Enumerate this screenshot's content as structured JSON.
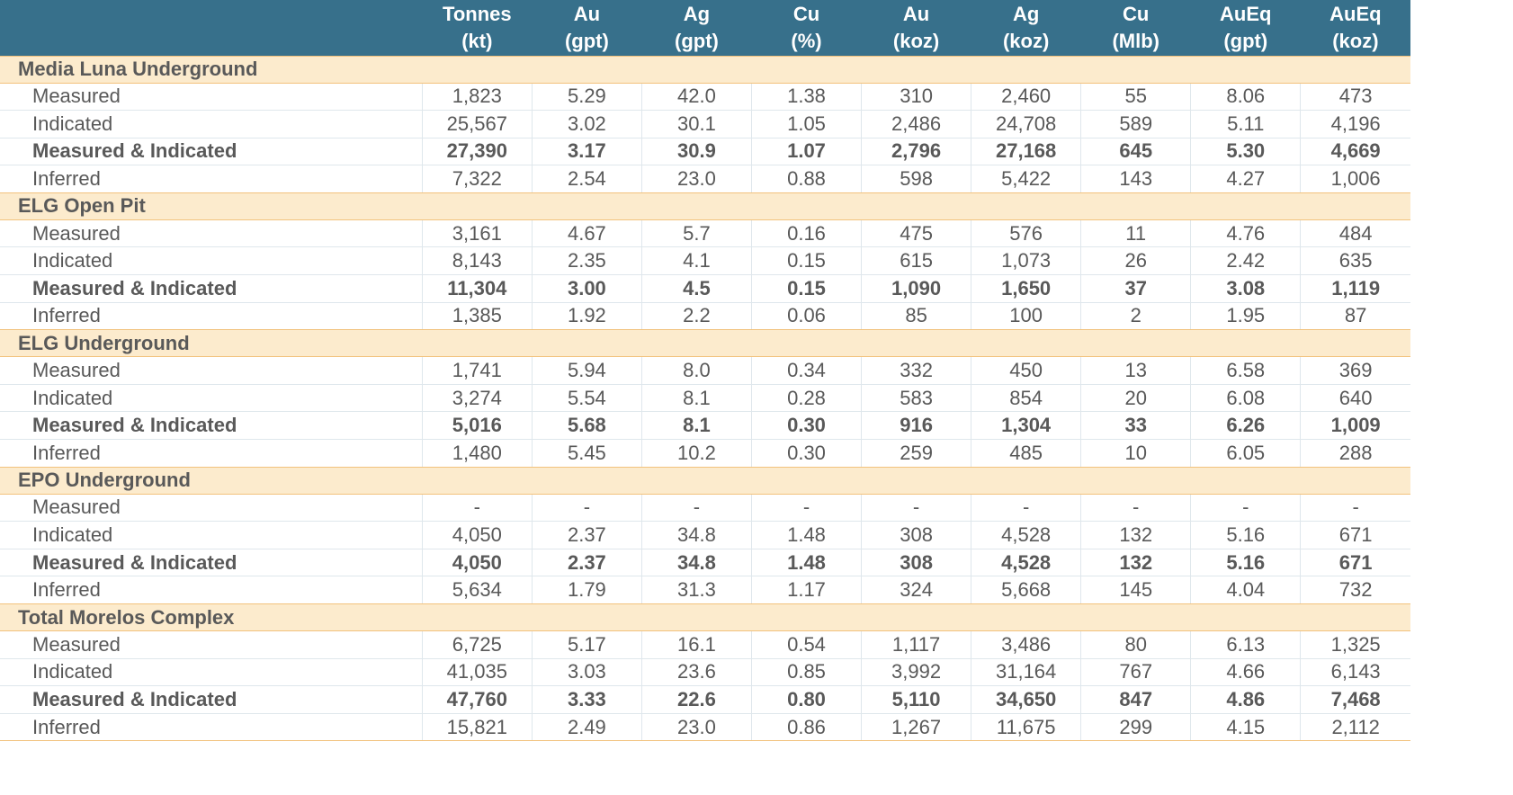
{
  "columns": [
    {
      "name": "Tonnes",
      "unit": "(kt)"
    },
    {
      "name": "Au",
      "unit": "(gpt)"
    },
    {
      "name": "Ag",
      "unit": "(gpt)"
    },
    {
      "name": "Cu",
      "unit": "(%)"
    },
    {
      "name": "Au",
      "unit": "(koz)"
    },
    {
      "name": "Ag",
      "unit": "(koz)"
    },
    {
      "name": "Cu",
      "unit": "(Mlb)"
    },
    {
      "name": "AuEq",
      "unit": "(gpt)"
    },
    {
      "name": "AuEq",
      "unit": "(koz)"
    }
  ],
  "sections": [
    {
      "title": "Media Luna Underground",
      "rows": [
        {
          "label": "Measured",
          "bold": false,
          "values": [
            "1,823",
            "5.29",
            "42.0",
            "1.38",
            "310",
            "2,460",
            "55",
            "8.06",
            "473"
          ]
        },
        {
          "label": "Indicated",
          "bold": false,
          "values": [
            "25,567",
            "3.02",
            "30.1",
            "1.05",
            "2,486",
            "24,708",
            "589",
            "5.11",
            "4,196"
          ]
        },
        {
          "label": "Measured & Indicated",
          "bold": true,
          "values": [
            "27,390",
            "3.17",
            "30.9",
            "1.07",
            "2,796",
            "27,168",
            "645",
            "5.30",
            "4,669"
          ]
        },
        {
          "label": "Inferred",
          "bold": false,
          "values": [
            "7,322",
            "2.54",
            "23.0",
            "0.88",
            "598",
            "5,422",
            "143",
            "4.27",
            "1,006"
          ]
        }
      ]
    },
    {
      "title": "ELG Open Pit",
      "rows": [
        {
          "label": "Measured",
          "bold": false,
          "values": [
            "3,161",
            "4.67",
            "5.7",
            "0.16",
            "475",
            "576",
            "11",
            "4.76",
            "484"
          ]
        },
        {
          "label": "Indicated",
          "bold": false,
          "values": [
            "8,143",
            "2.35",
            "4.1",
            "0.15",
            "615",
            "1,073",
            "26",
            "2.42",
            "635"
          ]
        },
        {
          "label": "Measured & Indicated",
          "bold": true,
          "values": [
            "11,304",
            "3.00",
            "4.5",
            "0.15",
            "1,090",
            "1,650",
            "37",
            "3.08",
            "1,119"
          ]
        },
        {
          "label": "Inferred",
          "bold": false,
          "values": [
            "1,385",
            "1.92",
            "2.2",
            "0.06",
            "85",
            "100",
            "2",
            "1.95",
            "87"
          ]
        }
      ]
    },
    {
      "title": "ELG Underground",
      "rows": [
        {
          "label": "Measured",
          "bold": false,
          "values": [
            "1,741",
            "5.94",
            "8.0",
            "0.34",
            "332",
            "450",
            "13",
            "6.58",
            "369"
          ]
        },
        {
          "label": "Indicated",
          "bold": false,
          "values": [
            "3,274",
            "5.54",
            "8.1",
            "0.28",
            "583",
            "854",
            "20",
            "6.08",
            "640"
          ]
        },
        {
          "label": "Measured & Indicated",
          "bold": true,
          "values": [
            "5,016",
            "5.68",
            "8.1",
            "0.30",
            "916",
            "1,304",
            "33",
            "6.26",
            "1,009"
          ]
        },
        {
          "label": "Inferred",
          "bold": false,
          "values": [
            "1,480",
            "5.45",
            "10.2",
            "0.30",
            "259",
            "485",
            "10",
            "6.05",
            "288"
          ]
        }
      ]
    },
    {
      "title": "EPO Underground",
      "rows": [
        {
          "label": "Measured",
          "bold": false,
          "values": [
            "-",
            "-",
            "-",
            "-",
            "-",
            "-",
            "-",
            "-",
            "-"
          ]
        },
        {
          "label": "Indicated",
          "bold": false,
          "values": [
            "4,050",
            "2.37",
            "34.8",
            "1.48",
            "308",
            "4,528",
            "132",
            "5.16",
            "671"
          ]
        },
        {
          "label": "Measured & Indicated",
          "bold": true,
          "values": [
            "4,050",
            "2.37",
            "34.8",
            "1.48",
            "308",
            "4,528",
            "132",
            "5.16",
            "671"
          ]
        },
        {
          "label": "Inferred",
          "bold": false,
          "values": [
            "5,634",
            "1.79",
            "31.3",
            "1.17",
            "324",
            "5,668",
            "145",
            "4.04",
            "732"
          ]
        }
      ]
    },
    {
      "title": "Total Morelos Complex",
      "rows": [
        {
          "label": "Measured",
          "bold": false,
          "values": [
            "6,725",
            "5.17",
            "16.1",
            "0.54",
            "1,117",
            "3,486",
            "80",
            "6.13",
            "1,325"
          ]
        },
        {
          "label": "Indicated",
          "bold": false,
          "values": [
            "41,035",
            "3.03",
            "23.6",
            "0.85",
            "3,992",
            "31,164",
            "767",
            "4.66",
            "6,143"
          ]
        },
        {
          "label": "Measured & Indicated",
          "bold": true,
          "values": [
            "47,760",
            "3.33",
            "22.6",
            "0.80",
            "5,110",
            "34,650",
            "847",
            "4.86",
            "7,468"
          ]
        },
        {
          "label": "Inferred",
          "bold": false,
          "values": [
            "15,821",
            "2.49",
            "23.0",
            "0.86",
            "1,267",
            "11,675",
            "299",
            "4.15",
            "2,112"
          ]
        }
      ]
    }
  ],
  "colors": {
    "header_bg": "#37708b",
    "section_bg": "#fcebcd",
    "section_border": "#f2c27d",
    "text": "#595959"
  }
}
